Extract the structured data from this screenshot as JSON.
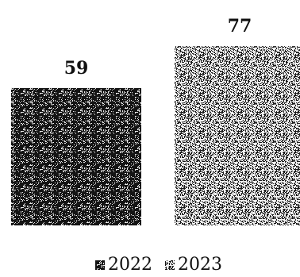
{
  "chart_data": {
    "type": "bar",
    "categories": [
      ""
    ],
    "series": [
      {
        "name": "2022",
        "values": [
          59
        ],
        "color": "#1a1a1a",
        "pattern": "dark-speckle"
      },
      {
        "name": "2023",
        "values": [
          77
        ],
        "color": "#8c8c8c",
        "pattern": "light-speckle"
      }
    ],
    "title": "",
    "xlabel": "",
    "ylabel": "",
    "ylim": [
      0,
      90
    ],
    "grid": false,
    "legend_position": "bottom-center",
    "data_labels": true
  }
}
